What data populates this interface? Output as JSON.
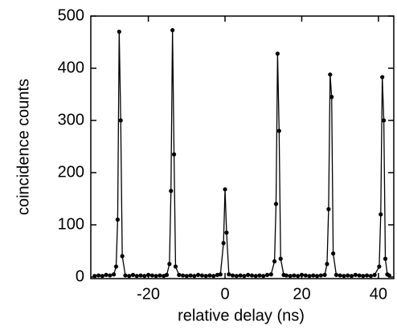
{
  "chart_data": {
    "type": "line",
    "x_label": "relative delay (ns)",
    "y_label": "coincidence counts",
    "xlim": [
      -35,
      44
    ],
    "xticks": [
      -20,
      0,
      20,
      40
    ],
    "ylim": [
      0,
      500
    ],
    "yticks": [
      0,
      100,
      200,
      300,
      400,
      500
    ],
    "color": "#000000",
    "markers": true,
    "grid": false,
    "x": [
      -34,
      -33,
      -32,
      -31,
      -30,
      -29,
      -28.4,
      -28,
      -27.6,
      -27.2,
      -26.8,
      -26,
      -25,
      -24,
      -23,
      -22,
      -21,
      -20,
      -19,
      -18,
      -17,
      -16,
      -15.2,
      -14.5,
      -14.1,
      -13.7,
      -13.3,
      -12.9,
      -12,
      -11,
      -10,
      -9,
      -8,
      -7,
      -6,
      -5,
      -4,
      -3,
      -2,
      -1.2,
      -0.4,
      0,
      0.4,
      1,
      2,
      3,
      4,
      5,
      6,
      7,
      8,
      9,
      10,
      11,
      12,
      12.9,
      13.3,
      13.7,
      14.1,
      14.5,
      15.3,
      16,
      17,
      18,
      19,
      20,
      21,
      22,
      23,
      24,
      25,
      26,
      26.6,
      27,
      27.4,
      27.8,
      28.2,
      29,
      30,
      31,
      32,
      33,
      34,
      35,
      36,
      37,
      38,
      39,
      40.2,
      40.6,
      41,
      41.4,
      41.8,
      42.3,
      42.8
    ],
    "values": [
      2,
      3,
      2,
      4,
      3,
      5,
      20,
      110,
      470,
      300,
      40,
      3,
      2,
      4,
      2,
      3,
      2,
      4,
      3,
      2,
      3,
      2,
      4,
      25,
      165,
      473,
      235,
      20,
      4,
      3,
      2,
      3,
      2,
      4,
      3,
      2,
      3,
      2,
      4,
      5,
      65,
      168,
      85,
      5,
      3,
      2,
      3,
      2,
      4,
      3,
      2,
      3,
      2,
      4,
      5,
      30,
      140,
      428,
      280,
      35,
      4,
      3,
      2,
      3,
      2,
      4,
      3,
      2,
      3,
      2,
      3,
      4,
      25,
      130,
      388,
      345,
      45,
      4,
      3,
      2,
      3,
      2,
      4,
      3,
      2,
      3,
      2,
      4,
      20,
      120,
      383,
      300,
      35,
      5,
      3
    ]
  }
}
